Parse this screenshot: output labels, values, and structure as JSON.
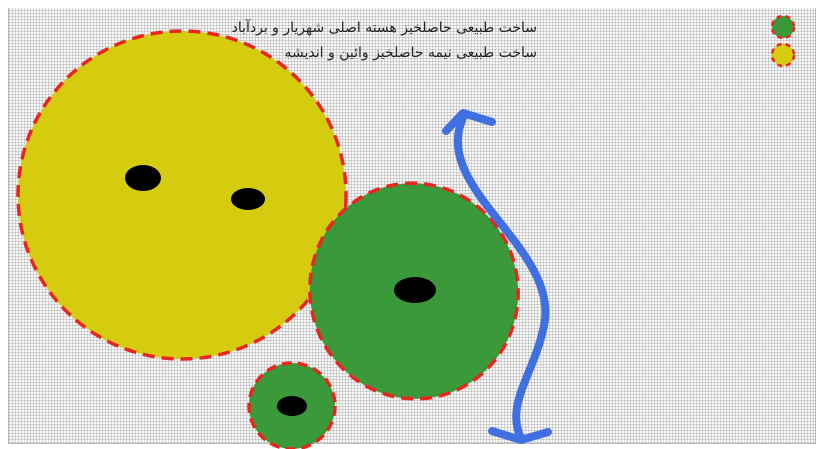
{
  "legend": {
    "items": [
      {
        "label": "ساخت طبیعی حاصلخیز هسته اصلی شهریار و بردآباد",
        "fill": "#3a9a3a",
        "stroke": "#e8261e"
      },
      {
        "label": "ساخت طبیعی  نیمه حاصلخیز وائین و اندیشه",
        "fill": "#d6cc0f",
        "stroke": "#e8261e"
      }
    ]
  },
  "colors": {
    "fertile_green": "#3a9a3a",
    "semi_fertile_yellow": "#d6cc0f",
    "boundary_red": "#e8261e",
    "core_dot": "#000000",
    "arrow_blue": "#3f6fe0"
  },
  "icons": {
    "arrow": "double-headed-wavy-arrow-icon"
  }
}
